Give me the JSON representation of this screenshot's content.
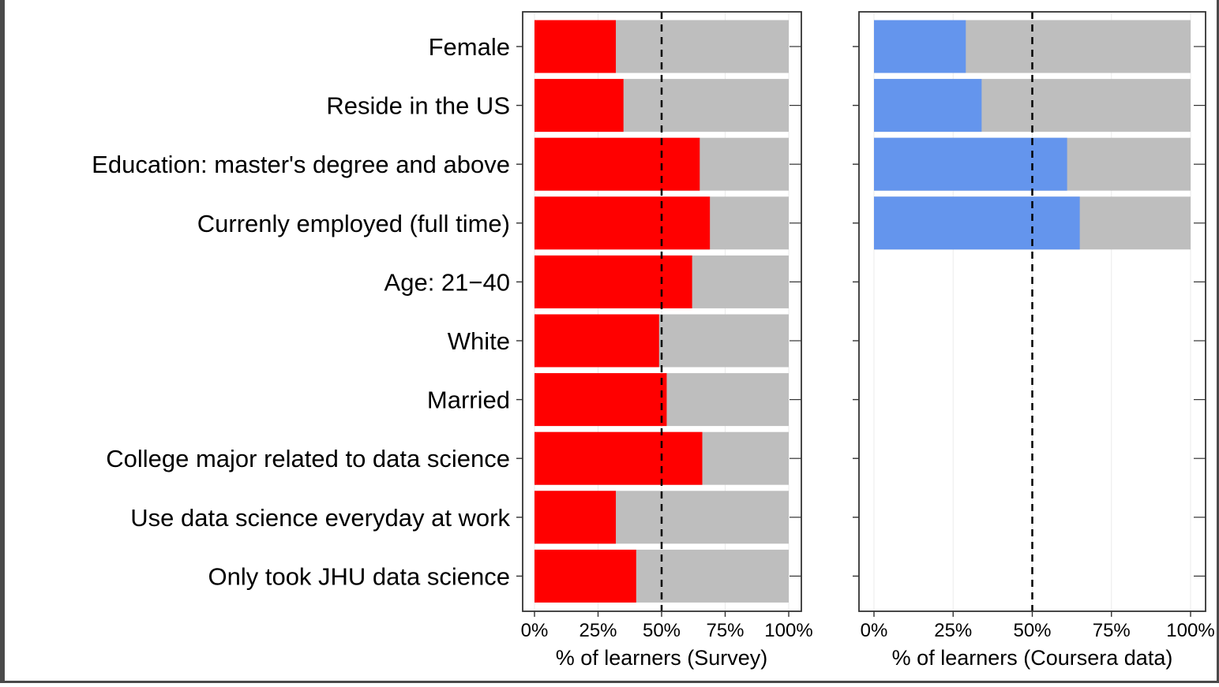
{
  "chart_data": [
    {
      "type": "bar",
      "orientation": "horizontal",
      "stacked": "percent-fill",
      "categories": [
        "Female",
        "Reside in the US",
        "Education: master's degree and above",
        "Currenly employed (full time)",
        "Age: 21−40",
        "White",
        "Married",
        "College major related to data science",
        "Use data science everyday at work",
        "Only took JHU data science"
      ],
      "values": [
        32,
        35,
        65,
        69,
        62,
        49,
        52,
        66,
        32,
        40
      ],
      "xlabel": "% of learners (Survey)",
      "xlim": [
        0,
        100
      ],
      "xticks": [
        "0%",
        "25%",
        "50%",
        "75%",
        "100%"
      ],
      "reference_line": 50,
      "bar_color": "#ff0000",
      "remainder_color": "#bebebe"
    },
    {
      "type": "bar",
      "orientation": "horizontal",
      "stacked": "percent-fill",
      "categories": [
        "Female",
        "Reside in the US",
        "Education: master's degree and above",
        "Currenly employed (full time)",
        "Age: 21−40",
        "White",
        "Married",
        "College major related to data science",
        "Use data science everyday at work",
        "Only took JHU data science"
      ],
      "values": [
        29,
        34,
        61,
        65,
        null,
        null,
        null,
        null,
        null,
        null
      ],
      "xlabel": "% of learners (Coursera data)",
      "xlim": [
        0,
        100
      ],
      "xticks": [
        "0%",
        "25%",
        "50%",
        "75%",
        "100%"
      ],
      "reference_line": 50,
      "bar_color": "#6495ed",
      "remainder_color": "#bebebe"
    }
  ]
}
